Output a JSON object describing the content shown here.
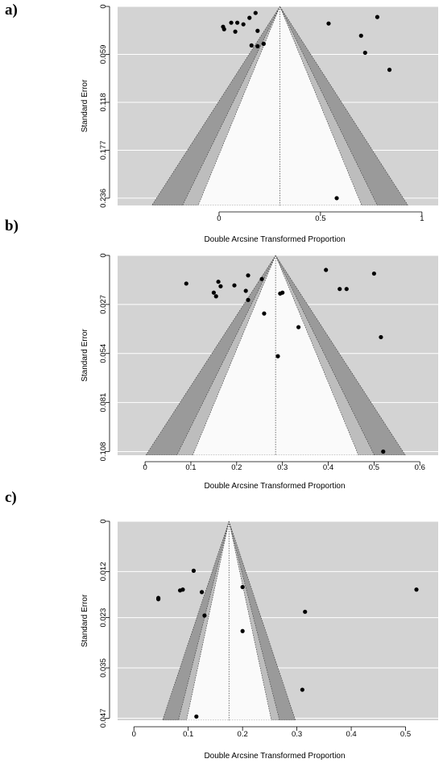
{
  "chart_data": [
    {
      "type": "scatter",
      "panel_label": "a)",
      "xlabel": "Double Arcsine Transformed Proportion",
      "ylabel": "Standard Error",
      "x_ticks": [
        "0",
        "0.5",
        "1"
      ],
      "x_tick_values": [
        0,
        0.5,
        1
      ],
      "y_ticks": [
        "0",
        "0.059",
        "0.118",
        "0.177",
        "0.236"
      ],
      "y_tick_values": [
        0,
        0.059,
        0.118,
        0.177,
        0.236
      ],
      "xlim": [
        -0.5,
        1.08
      ],
      "ylim": [
        0,
        0.245
      ],
      "pooled_estimate": 0.3,
      "contour_z": [
        1.645,
        1.96,
        2.576
      ],
      "grid": true,
      "points": [
        {
          "x": 0.02,
          "y": 0.025
        },
        {
          "x": 0.025,
          "y": 0.028
        },
        {
          "x": 0.06,
          "y": 0.02
        },
        {
          "x": 0.08,
          "y": 0.031
        },
        {
          "x": 0.09,
          "y": 0.02
        },
        {
          "x": 0.12,
          "y": 0.022
        },
        {
          "x": 0.15,
          "y": 0.014
        },
        {
          "x": 0.18,
          "y": 0.008
        },
        {
          "x": 0.19,
          "y": 0.03
        },
        {
          "x": 0.16,
          "y": 0.048
        },
        {
          "x": 0.19,
          "y": 0.049
        },
        {
          "x": 0.22,
          "y": 0.046
        },
        {
          "x": 0.54,
          "y": 0.021
        },
        {
          "x": 0.7,
          "y": 0.036
        },
        {
          "x": 0.72,
          "y": 0.057
        },
        {
          "x": 0.78,
          "y": 0.013
        },
        {
          "x": 0.84,
          "y": 0.078
        },
        {
          "x": 0.58,
          "y": 0.236
        }
      ]
    },
    {
      "type": "scatter",
      "panel_label": "b)",
      "xlabel": "Double Arcsine Transformed Proportion",
      "ylabel": "Standard Error",
      "x_ticks": [
        "0",
        "0.1",
        "0.2",
        "0.3",
        "0.4",
        "0.5",
        "0.6"
      ],
      "x_tick_values": [
        0,
        0.1,
        0.2,
        0.3,
        0.4,
        0.5,
        0.6
      ],
      "y_ticks": [
        "0",
        "0.027",
        "0.054",
        "0.081",
        "0.108"
      ],
      "y_tick_values": [
        0,
        0.027,
        0.054,
        0.081,
        0.108
      ],
      "xlim": [
        -0.06,
        0.64
      ],
      "ylim": [
        0,
        0.11
      ],
      "pooled_estimate": 0.285,
      "contour_z": [
        1.645,
        1.96,
        2.576
      ],
      "grid": true,
      "points": [
        {
          "x": 0.09,
          "y": 0.0155
        },
        {
          "x": 0.15,
          "y": 0.0205
        },
        {
          "x": 0.155,
          "y": 0.0225
        },
        {
          "x": 0.16,
          "y": 0.0145
        },
        {
          "x": 0.165,
          "y": 0.017
        },
        {
          "x": 0.195,
          "y": 0.0165
        },
        {
          "x": 0.22,
          "y": 0.0195
        },
        {
          "x": 0.225,
          "y": 0.011
        },
        {
          "x": 0.225,
          "y": 0.0245
        },
        {
          "x": 0.255,
          "y": 0.013
        },
        {
          "x": 0.26,
          "y": 0.032
        },
        {
          "x": 0.29,
          "y": 0.0555
        },
        {
          "x": 0.295,
          "y": 0.021
        },
        {
          "x": 0.3,
          "y": 0.0205
        },
        {
          "x": 0.335,
          "y": 0.0395
        },
        {
          "x": 0.395,
          "y": 0.008
        },
        {
          "x": 0.425,
          "y": 0.0185
        },
        {
          "x": 0.44,
          "y": 0.0185
        },
        {
          "x": 0.5,
          "y": 0.01
        },
        {
          "x": 0.515,
          "y": 0.045
        },
        {
          "x": 0.52,
          "y": 0.108
        }
      ]
    },
    {
      "type": "scatter",
      "panel_label": "c)",
      "xlabel": "Double Arcsine Transformed Proportion",
      "ylabel": "Standard Error",
      "x_ticks": [
        "0",
        "0.1",
        "0.2",
        "0.3",
        "0.4",
        "0.5"
      ],
      "x_tick_values": [
        0,
        0.1,
        0.2,
        0.3,
        0.4,
        0.5
      ],
      "y_ticks": [
        "0",
        "0.012",
        "0.023",
        "0.035",
        "0.047"
      ],
      "y_tick_values": [
        0,
        0.012,
        0.023,
        0.035,
        0.047
      ],
      "xlim": [
        -0.03,
        0.56
      ],
      "ylim": [
        0,
        0.0475
      ],
      "pooled_estimate": 0.175,
      "contour_z": [
        1.645,
        1.96,
        2.576
      ],
      "grid": true,
      "points": [
        {
          "x": 0.045,
          "y": 0.0183
        },
        {
          "x": 0.045,
          "y": 0.0186
        },
        {
          "x": 0.085,
          "y": 0.0165
        },
        {
          "x": 0.09,
          "y": 0.0163
        },
        {
          "x": 0.11,
          "y": 0.0118
        },
        {
          "x": 0.125,
          "y": 0.0169
        },
        {
          "x": 0.13,
          "y": 0.0225
        },
        {
          "x": 0.2,
          "y": 0.0157
        },
        {
          "x": 0.2,
          "y": 0.0262
        },
        {
          "x": 0.31,
          "y": 0.0402
        },
        {
          "x": 0.315,
          "y": 0.0216
        },
        {
          "x": 0.52,
          "y": 0.0163
        },
        {
          "x": 0.115,
          "y": 0.0466
        }
      ]
    }
  ]
}
